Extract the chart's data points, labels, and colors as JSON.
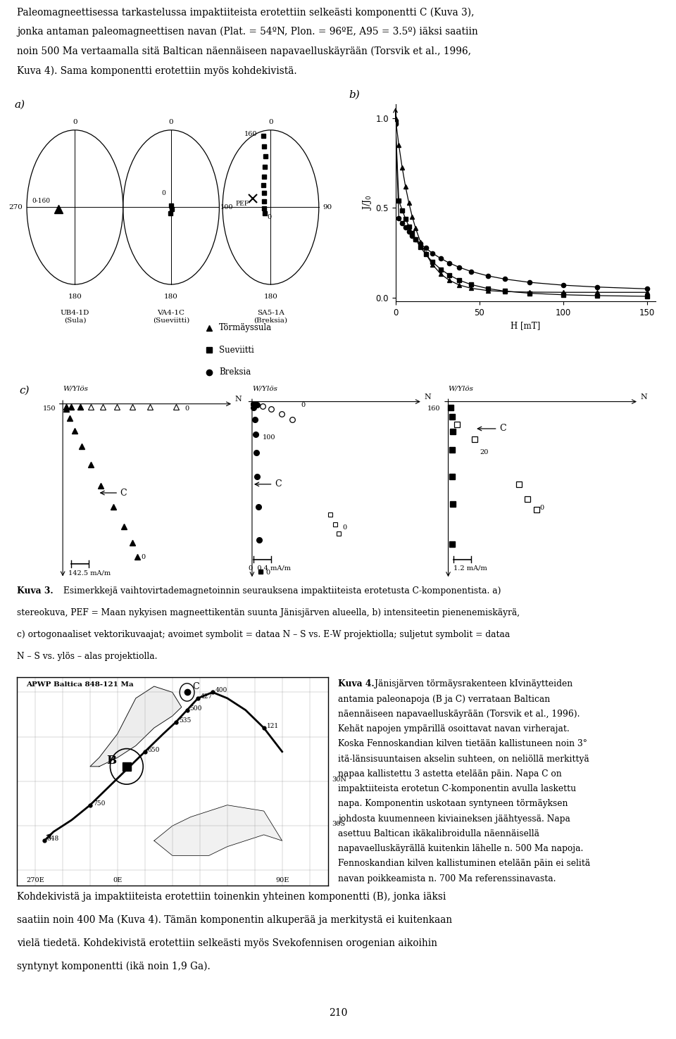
{
  "page_title_lines": [
    "Paleomagneettisessa tarkastelussa impaktiiteista erotettiin selkeästi komponentti C (Kuva 3),",
    "jonka antaman paleomagneettisen navan (Plat. = 54ºN, Plon. = 96ºE, A95 = 3.5º) iäksi saatiin",
    "noin 500 Ma vertaamalla sitä Baltican näennäiseen napavaelluskäyrään (Torsvik et al., 1996,",
    "Kuva 4). Sama komponentti erotettiin myös kohdekivistä."
  ],
  "caption3_lines": [
    "stereokuva, PEF = Maan nykyisen magneettikentän suunta Jänisjärven alueella, b) intensiteetin pienenemiskäyrä,",
    "c) ortogonaaliset vektorikuvaajat; avoimet symbolit = dataa N – S vs. E-W projektiolla; suljetut symbolit = dataa",
    "N – S vs. ylös – alas projektiolla."
  ],
  "caption4_lines": [
    "antamia paleonapoja (B ja C) verrataan Baltican",
    "näennäiseen napavaelluskäyrään (Torsvik et al., 1996).",
    "Kehät napojen ympärillä osoittavat navan virherajat.",
    "Koska Fennoskandian kilven tietään kallistuneen noin 3°",
    "itä-länsisuuntaisen akselin suhteen, on neliöllä merkittyä",
    "napaa kallistettu 3 astetta etelään päin. Napa C on",
    "impaktiiteista erotetun C-komponentin avulla laskettu",
    "napa. Komponentin uskotaan syntyneen törmäyksen",
    "johdosta kuumenneen kiviaineksen jäähtyessä. Napa",
    "asettuu Baltican ikäkalibroidulla näennäisellä",
    "napavaelluskäyrällä kuitenkin lähelle n. 500 Ma napoja.",
    "Fennoskandian kilven kallistuminen etelään päin ei selitä",
    "navan poikkeamista n. 700 Ma referenssinavasta."
  ],
  "bottom_text_lines": [
    "Kohdekivistä ja impaktiiteista erotettiin toinenkin yhteinen komponentti (B), jonka iäksi",
    "saatiin noin 400 Ma (Kuva 4). Tämän komponentin alkuperää ja merkitystä ei kuitenkaan",
    "vielä tiedetä. Kohdekivistä erotettiin selkeästi myös Svekofennisen orogenian aikoihin",
    "syntynyt komponentti (ikä noin 1,9 Ga)."
  ],
  "page_number": "210"
}
